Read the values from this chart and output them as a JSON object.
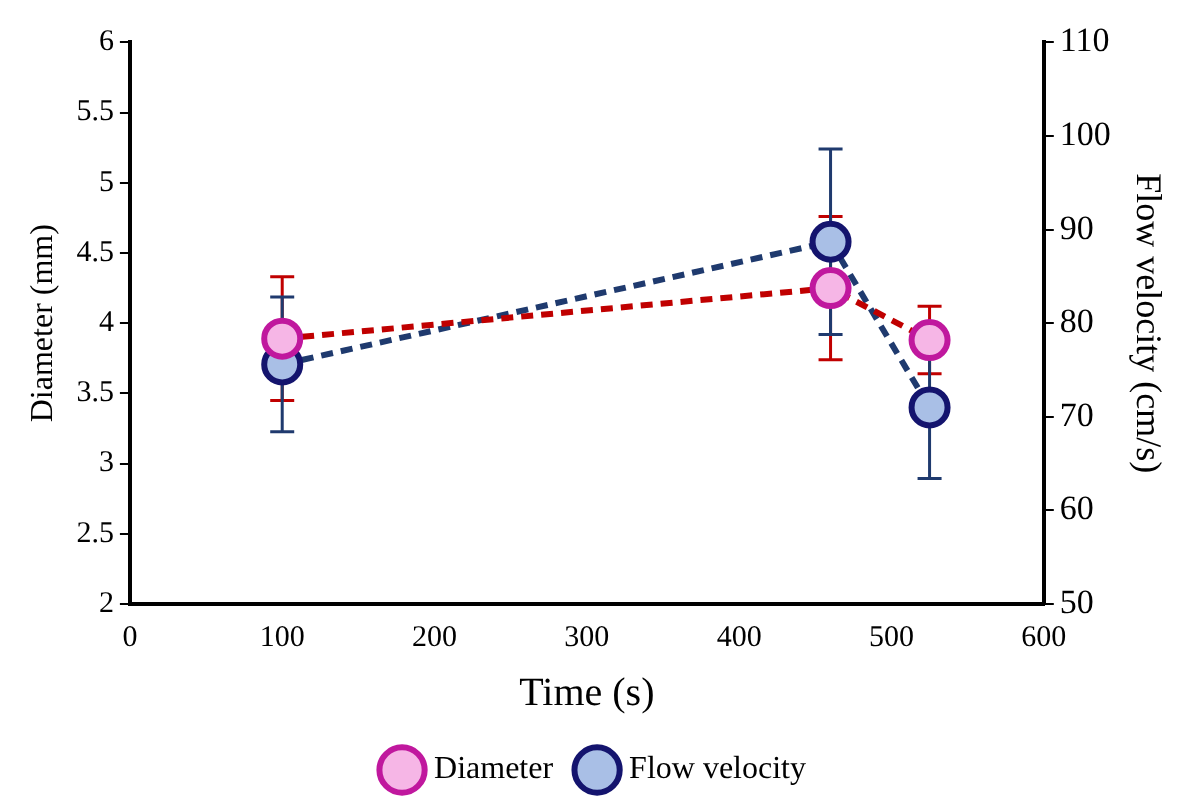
{
  "chart_data": {
    "type": "line",
    "xlabel": "Time (s)",
    "ylabel": "Diameter (mm)",
    "y2label": "Flow velocity (cm/s)",
    "x": [
      100,
      460,
      525
    ],
    "series": [
      {
        "name": "Diameter",
        "color": "#c00000",
        "values": [
          3.89,
          4.25,
          3.88
        ],
        "errors": [
          0.44,
          0.51,
          0.24
        ]
      },
      {
        "name": "Flow velocity",
        "color": "#1f3a6e",
        "axis": "y2",
        "values": [
          75.6,
          88.7,
          71.0
        ],
        "errors": [
          7.2,
          9.9,
          7.6
        ]
      }
    ],
    "xlim": [
      0,
      600
    ],
    "xticks": [
      0,
      100,
      200,
      300,
      400,
      500,
      600
    ],
    "ylim": [
      2,
      6
    ],
    "yticks": [
      2,
      2.5,
      3,
      3.5,
      4,
      4.5,
      5,
      5.5,
      6
    ],
    "y2lim": [
      50,
      110
    ],
    "y2ticks": [
      50,
      60,
      70,
      80,
      90,
      100,
      110
    ],
    "grid": false,
    "legend": "bottom",
    "marker": "circle",
    "line_style": "dashed"
  }
}
